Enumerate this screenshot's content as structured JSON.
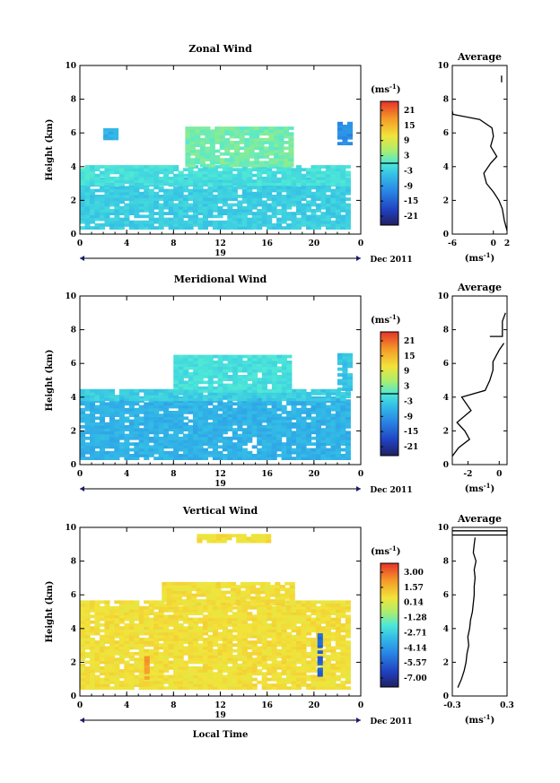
{
  "figure": {
    "date_label": "Dec 2011",
    "day_label": "19",
    "xlabel": "Local Time",
    "ylabel": "Height (km)",
    "unit_label": "(ms",
    "unit_sup": "-1",
    "unit_close": ")",
    "average_title": "Average"
  },
  "chart_data": [
    {
      "type": "heatmap",
      "title": "Zonal Wind",
      "xlabel": "Local Time",
      "ylabel": "Height (km)",
      "xlim": [
        0,
        24
      ],
      "ylim": [
        0,
        10
      ],
      "x_ticks": [
        "0",
        "4",
        "8",
        "12",
        "16",
        "20",
        "0"
      ],
      "y_ticks": [
        "0",
        "2",
        "4",
        "6",
        "8",
        "10"
      ],
      "colorbar": {
        "ticks": [
          "21",
          "15",
          "9",
          "3",
          "-3",
          "-9",
          "-15",
          "-21"
        ],
        "range": [
          -24,
          24
        ],
        "zero_line": 0
      },
      "regions": [
        {
          "x0": 0,
          "x1": 23,
          "y0": 0.3,
          "y1": 3.2,
          "value": -3
        },
        {
          "x0": 0,
          "x1": 23,
          "y0": 2.9,
          "y1": 4.0,
          "value": -1
        },
        {
          "x0": 9,
          "x1": 18,
          "y0": 4.0,
          "y1": 6.3,
          "value": 2
        },
        {
          "x0": 22,
          "x1": 23,
          "y0": 5.3,
          "y1": 6.6,
          "value": -10
        },
        {
          "x0": 2,
          "x1": 3,
          "y0": 5.6,
          "y1": 6.2,
          "value": -6
        }
      ],
      "average": {
        "xlim": [
          -6,
          2
        ],
        "x_ticks": [
          "-6",
          "0",
          "2"
        ],
        "y_ticks": [
          "0",
          "2",
          "4",
          "6",
          "8",
          "10"
        ],
        "ylim": [
          0,
          10
        ],
        "profile": [
          [
            2.0,
            0.2
          ],
          [
            1.6,
            0.8
          ],
          [
            1.3,
            1.5
          ],
          [
            0.8,
            2.0
          ],
          [
            0.0,
            2.5
          ],
          [
            -1.0,
            3.0
          ],
          [
            -1.4,
            3.6
          ],
          [
            -0.4,
            4.2
          ],
          [
            0.5,
            4.6
          ],
          [
            -0.4,
            5.2
          ],
          [
            0.0,
            5.8
          ],
          [
            -0.2,
            6.3
          ],
          [
            -2.0,
            6.8
          ],
          [
            -5.9,
            7.1
          ],
          [
            -6.0,
            7.3
          ]
        ],
        "upper_segment": [
          [
            1.2,
            9.0
          ],
          [
            1.2,
            9.4
          ]
        ],
        "xlabel": "(ms-1)"
      }
    },
    {
      "type": "heatmap",
      "title": "Meridional Wind",
      "xlabel": "Local Time",
      "ylabel": "Height (km)",
      "xlim": [
        0,
        24
      ],
      "ylim": [
        0,
        10
      ],
      "x_ticks": [
        "0",
        "4",
        "8",
        "12",
        "16",
        "20",
        "0"
      ],
      "y_ticks": [
        "0",
        "2",
        "4",
        "6",
        "8",
        "10"
      ],
      "colorbar": {
        "ticks": [
          "21",
          "15",
          "9",
          "3",
          "-3",
          "-9",
          "-15",
          "-21"
        ],
        "range": [
          -24,
          24
        ],
        "zero_line": 0
      },
      "regions": [
        {
          "x0": 0,
          "x1": 23,
          "y0": 0.3,
          "y1": 3.9,
          "value": -6
        },
        {
          "x0": 0,
          "x1": 23,
          "y0": 3.8,
          "y1": 4.4,
          "value": -3
        },
        {
          "x0": 8,
          "x1": 18,
          "y0": 4.3,
          "y1": 6.4,
          "value": -1
        },
        {
          "x0": 22,
          "x1": 23,
          "y0": 4.4,
          "y1": 6.6,
          "value": -4
        }
      ],
      "average": {
        "xlim": [
          -3,
          0.5
        ],
        "x_ticks": [
          "-2",
          "0"
        ],
        "y_ticks": [
          "0",
          "2",
          "4",
          "6",
          "8",
          "10"
        ],
        "ylim": [
          0,
          10
        ],
        "profile": [
          [
            -3.0,
            0.5
          ],
          [
            -2.6,
            1.0
          ],
          [
            -1.9,
            1.5
          ],
          [
            -2.2,
            2.0
          ],
          [
            -2.7,
            2.5
          ],
          [
            -1.8,
            3.2
          ],
          [
            -2.4,
            4.0
          ],
          [
            -0.9,
            4.4
          ],
          [
            -0.6,
            5.0
          ],
          [
            -0.4,
            5.6
          ],
          [
            -0.4,
            6.1
          ],
          [
            0.0,
            6.8
          ],
          [
            0.3,
            7.2
          ]
        ],
        "upper_segment": [
          [
            -0.6,
            7.6
          ],
          [
            0.2,
            7.6
          ],
          [
            0.2,
            8.5
          ],
          [
            0.4,
            9.0
          ]
        ],
        "xlabel": "(ms-1)"
      }
    },
    {
      "type": "heatmap",
      "title": "Vertical Wind",
      "xlabel": "Local Time",
      "ylabel": "Height (km)",
      "xlim": [
        0,
        24
      ],
      "ylim": [
        0,
        10
      ],
      "x_ticks": [
        "0",
        "4",
        "8",
        "12",
        "16",
        "20",
        "0"
      ],
      "y_ticks": [
        "0",
        "2",
        "4",
        "6",
        "8",
        "10"
      ],
      "colorbar": {
        "ticks": [
          "3.00",
          "1.57",
          "0.14",
          "-1.28",
          "-2.71",
          "-4.14",
          "-5.57",
          "-7.00"
        ],
        "range": [
          -7.72,
          3.72
        ],
        "zero_line": null
      },
      "regions": [
        {
          "x0": 0,
          "x1": 23,
          "y0": 0.4,
          "y1": 5.5,
          "value": 0.6
        },
        {
          "x0": 7,
          "x1": 18,
          "y0": 5.4,
          "y1": 6.7,
          "value": 0.6
        },
        {
          "x0": 10,
          "x1": 16,
          "y0": 9.1,
          "y1": 9.5,
          "value": 0.6
        },
        {
          "x0": 20.3,
          "x1": 20.7,
          "y0": 1.0,
          "y1": 3.6,
          "value": -5.5
        },
        {
          "x0": 5.5,
          "x1": 5.8,
          "y0": 1.0,
          "y1": 2.3,
          "value": 2.0
        }
      ],
      "average": {
        "xlim": [
          -0.3,
          0.3
        ],
        "x_ticks": [
          "-0.3",
          "0.3"
        ],
        "y_ticks": [
          "0",
          "2",
          "4",
          "6",
          "8",
          "10"
        ],
        "ylim": [
          0,
          10
        ],
        "profile": [
          [
            -0.24,
            0.5
          ],
          [
            -0.2,
            1.0
          ],
          [
            -0.17,
            1.5
          ],
          [
            -0.15,
            2.0
          ],
          [
            -0.14,
            2.5
          ],
          [
            -0.12,
            3.0
          ],
          [
            -0.13,
            3.5
          ],
          [
            -0.11,
            4.0
          ],
          [
            -0.1,
            4.5
          ],
          [
            -0.08,
            5.0
          ],
          [
            -0.07,
            5.5
          ],
          [
            -0.06,
            6.0
          ],
          [
            -0.06,
            6.5
          ],
          [
            -0.05,
            7.0
          ],
          [
            -0.06,
            7.5
          ],
          [
            -0.04,
            8.0
          ],
          [
            -0.07,
            8.5
          ],
          [
            -0.06,
            9.0
          ],
          [
            -0.05,
            9.4
          ]
        ],
        "upper_segment": [
          [
            -0.3,
            9.55
          ],
          [
            0.3,
            9.55
          ],
          [
            0.3,
            9.8
          ],
          [
            -0.3,
            9.8
          ]
        ],
        "xlabel": "(ms-1)"
      }
    }
  ]
}
